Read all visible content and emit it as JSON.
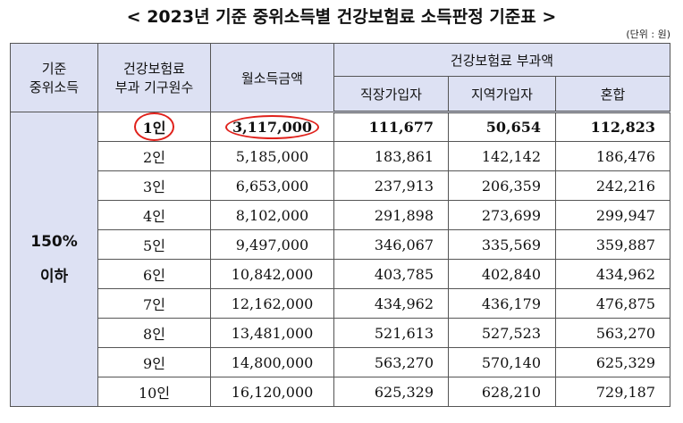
{
  "title": "< 2023년 기준 중위소득별 건강보험료 소득판정 기준표 >",
  "unit": "(단위 : 원)",
  "headers": {
    "median_line1": "기준",
    "median_line2": "중위소득",
    "household_line1": "건강보험료",
    "household_line2": "부과 기구원수",
    "monthly_income": "월소득금액",
    "premium_group": "건강보험료 부과액",
    "workplace": "직장가입자",
    "regional": "지역가입자",
    "mixed": "혼합"
  },
  "group": {
    "line1": "150%",
    "line2": "이하"
  },
  "rows": [
    {
      "household": "1인",
      "income": "3,117,000",
      "workplace": "111,677",
      "regional": "50,654",
      "mixed": "112,823"
    },
    {
      "household": "2인",
      "income": "5,185,000",
      "workplace": "183,861",
      "regional": "142,142",
      "mixed": "186,476"
    },
    {
      "household": "3인",
      "income": "6,653,000",
      "workplace": "237,913",
      "regional": "206,359",
      "mixed": "242,216"
    },
    {
      "household": "4인",
      "income": "8,102,000",
      "workplace": "291,898",
      "regional": "273,699",
      "mixed": "299,947"
    },
    {
      "household": "5인",
      "income": "9,497,000",
      "workplace": "346,067",
      "regional": "335,569",
      "mixed": "359,887"
    },
    {
      "household": "6인",
      "income": "10,842,000",
      "workplace": "403,785",
      "regional": "402,840",
      "mixed": "434,962"
    },
    {
      "household": "7인",
      "income": "12,162,000",
      "workplace": "434,962",
      "regional": "436,179",
      "mixed": "476,875"
    },
    {
      "household": "8인",
      "income": "13,481,000",
      "workplace": "521,613",
      "regional": "527,523",
      "mixed": "563,270"
    },
    {
      "household": "9인",
      "income": "14,800,000",
      "workplace": "563,270",
      "regional": "570,140",
      "mixed": "625,329"
    },
    {
      "household": "10인",
      "income": "16,120,000",
      "workplace": "625,329",
      "regional": "628,210",
      "mixed": "729,187"
    }
  ]
}
